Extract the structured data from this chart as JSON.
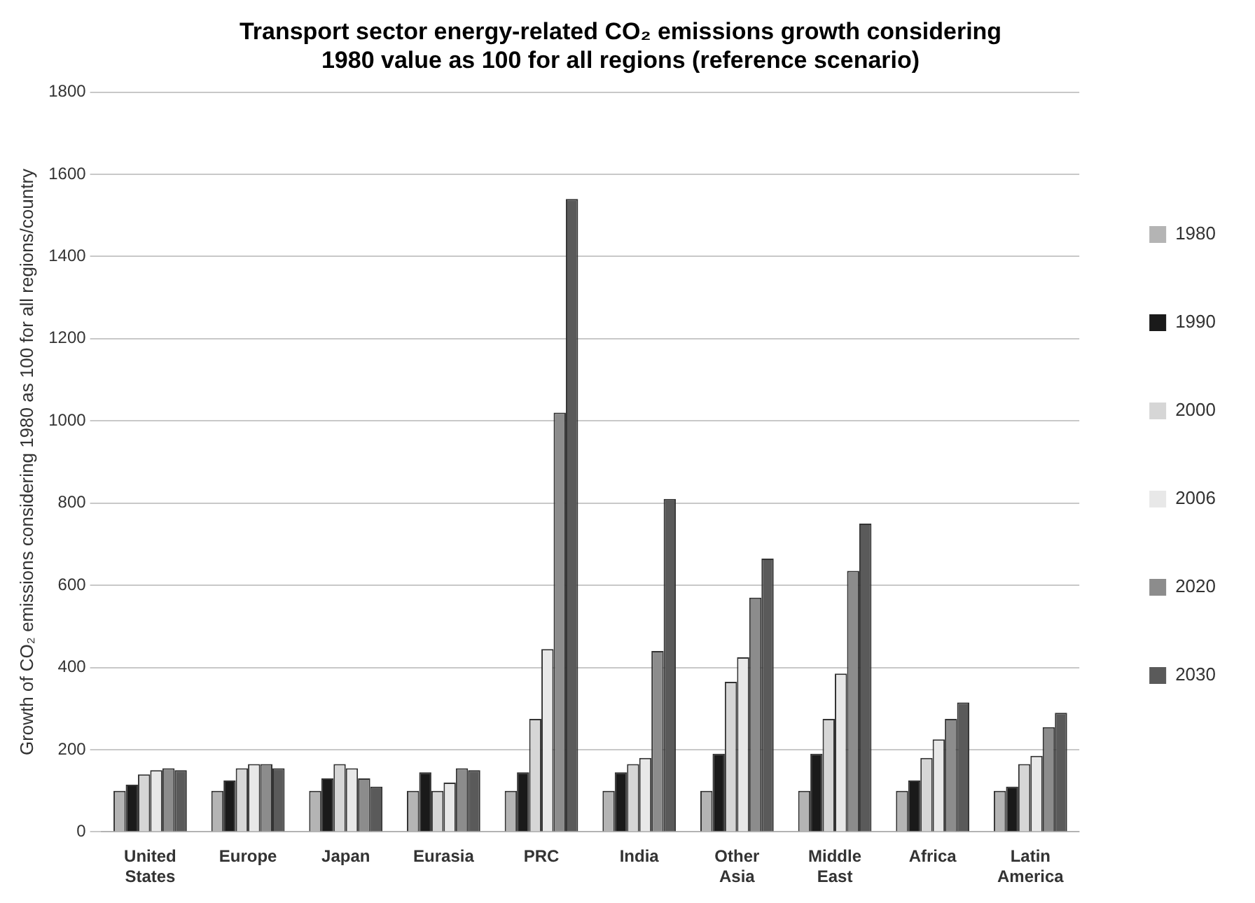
{
  "chart_data": {
    "type": "bar",
    "title": "Transport sector energy-related CO₂ emissions growth considering 1980 value as 100 for all regions (reference scenario)",
    "ylabel": "Growth of CO₂ emissions considering 1980 as 100 for all regions/country",
    "categories": [
      [
        "United",
        "States"
      ],
      "Europe",
      "Japan",
      "Eurasia",
      "PRC",
      "India",
      [
        "Other",
        "Asia"
      ],
      [
        "Middle",
        "East"
      ],
      "Africa",
      [
        "Latin",
        "America"
      ]
    ],
    "series": [
      {
        "name": "1980",
        "color": "#b4b4b4",
        "values": [
          100,
          100,
          100,
          100,
          100,
          100,
          100,
          100,
          100,
          100
        ]
      },
      {
        "name": "1990",
        "color": "#1a1a1a",
        "values": [
          115,
          125,
          130,
          145,
          145,
          145,
          190,
          190,
          125,
          110
        ]
      },
      {
        "name": "2000",
        "color": "#d6d6d6",
        "values": [
          140,
          155,
          165,
          100,
          275,
          165,
          365,
          275,
          180,
          165
        ]
      },
      {
        "name": "2006",
        "color": "#e8e8e8",
        "values": [
          150,
          165,
          155,
          120,
          445,
          180,
          425,
          385,
          225,
          185
        ]
      },
      {
        "name": "2020",
        "color": "#8c8c8c",
        "values": [
          155,
          165,
          130,
          155,
          1020,
          440,
          570,
          635,
          275,
          255
        ]
      },
      {
        "name": "2030",
        "color": "#5a5a5a",
        "values": [
          150,
          155,
          110,
          150,
          1540,
          810,
          665,
          750,
          315,
          290
        ]
      }
    ],
    "ylim": [
      0,
      1800
    ],
    "yticks": [
      0,
      200,
      400,
      600,
      800,
      1000,
      1200,
      1400,
      1600,
      1800
    ],
    "grid": "y",
    "legend": "right"
  }
}
